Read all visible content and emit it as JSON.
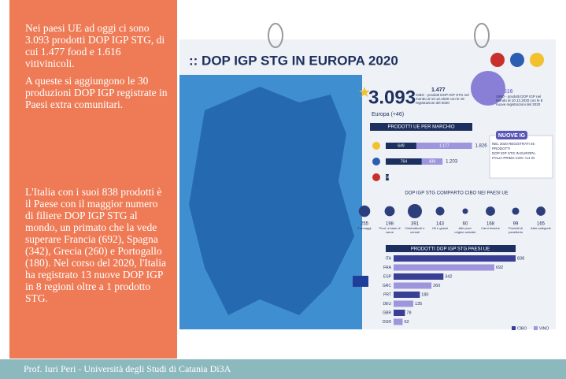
{
  "left_panel": {
    "paragraphs": [
      "Nei paesi UE ad oggi ci sono 3.093 prodotti DOP IGP STG, di cui 1.477 food e 1.616 vitivinicoli.",
      "A queste si aggiungono le 30 produzioni DOP IGP registrate in Paesi extra comunitari.",
      "L'Italia con i suoi 838 prodotti è il Paese con il maggior numero di filiere DOP IGP STG al mondo, un primato che la vede superare Francia (692), Spagna (342), Grecia (260) e Portogallo (180). Nel corso del 2020, l'Italia ha registrato 13 nuove DOP IGP in 8 regioni oltre a 1 prodotto STG."
    ]
  },
  "infographic": {
    "title": ":: DOP IGP STG IN EUROPA 2020",
    "total": {
      "value": "3.093",
      "label": "Europa (+46)"
    },
    "food": {
      "value": "1.477",
      "label": "CIBO - prodotti DOP IGP STG nel mondo al 10.12.2020 con le 18 registrazioni del 2020"
    },
    "wine": {
      "value": "1.616",
      "label": "VINO - prodotti DOP IGP nel mondo al 10.12.2020 con le 8 nuove registrazioni del 2020"
    },
    "by_mark": {
      "title": "PRODOTTI UE PER MARCHIO",
      "rows": [
        {
          "values": [
            649,
            1177
          ],
          "value_labels": [
            "649",
            "1.177"
          ],
          "total": "1.826"
        },
        {
          "values": [
            764,
            439
          ],
          "value_labels": [
            "764",
            "439"
          ],
          "total": "1.203"
        },
        {
          "values": [
            64
          ],
          "value_labels": [
            "64"
          ]
        }
      ]
    },
    "new_ig": {
      "title": "NUOVE IG",
      "lines": [
        "NEL 2020 REGISTRATI 46 PRODOTTI",
        "DOP IGP STG IN EUROPA. ITALIA PRIMA CON +14 IG"
      ]
    },
    "sectors": {
      "title": "DOP IGP STG COMPARTO CIBO NEI PAESI UE",
      "categories": [
        "Formaggi",
        "Prod. a base di carne",
        "Ortofrutticoli e cereali",
        "Oli e grassi",
        "Altri prod. origine animale",
        "Carni fresche",
        "Prodotti di panetteria",
        "Altre categorie"
      ],
      "values": [
        255,
        198,
        391,
        143,
        60,
        168,
        99,
        165
      ]
    },
    "countries": {
      "title": "PRODOTTI DOP IGP STG PAESI UE",
      "categories": [
        "ITA",
        "FRA",
        "ESP",
        "GRC",
        "PRT",
        "DEU",
        "GBR",
        "DGR"
      ],
      "values": [
        838,
        692,
        342,
        260,
        180,
        135,
        78,
        62
      ],
      "legend": [
        "CIBO",
        "VINO"
      ]
    }
  },
  "footer": "Prof. Iuri Peri -  Università degli Studi di Catania Di3A"
}
